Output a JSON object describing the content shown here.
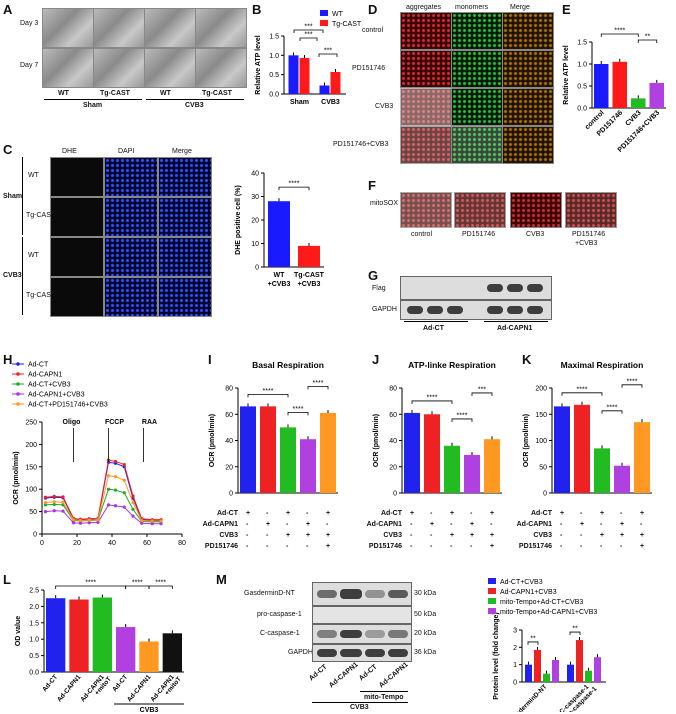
{
  "panels": {
    "A": {
      "letter": "A",
      "rows": [
        "Day 3",
        "Day 7"
      ],
      "cols": [
        "WT",
        "Tg-CAST",
        "WT",
        "Tg-CAST"
      ],
      "groups": [
        "Sham",
        "CVB3"
      ]
    },
    "C": {
      "letter": "C",
      "cols": [
        "DHE",
        "DAPI",
        "Merge"
      ],
      "rows": [
        "WT",
        "Tg-CAST",
        "WT",
        "Tg-CAST"
      ],
      "groups": [
        "Sham",
        "CVB3"
      ]
    },
    "D": {
      "letter": "D",
      "cols": [
        "aggregates",
        "monomers",
        "Merge"
      ],
      "rows": [
        "control",
        "PD151746",
        "CVB3",
        "PD151746+CVB3"
      ]
    },
    "F": {
      "letter": "F",
      "row": "mitoSOX",
      "cols": [
        "control",
        "PD151746",
        "CVB3",
        "PD151746",
        "+CVB3"
      ]
    },
    "G": {
      "letter": "G",
      "rows": [
        "Flag",
        "GAPDH"
      ],
      "groups": [
        "Ad-CT",
        "Ad-CAPN1"
      ]
    },
    "M": {
      "letter": "M",
      "rows": [
        "GasderminD-NT",
        "pro-caspase-1",
        "C-caspase-1",
        "GAPDH"
      ],
      "kda": [
        "30 kDa",
        "50 kDa",
        "20 kDa",
        "36 kDa"
      ],
      "lanes": [
        "Ad-CT",
        "Ad-CAPN1",
        "Ad-CT",
        "Ad-CAPN1"
      ],
      "sub": "mito-Tempo",
      "group": "CVB3"
    }
  },
  "tables": {
    "I": {
      "rows": [
        "Ad-CT",
        "Ad-CAPN1",
        "CVB3",
        "PD151746"
      ],
      "cells": [
        [
          "+",
          "-",
          "+",
          "-",
          "+"
        ],
        [
          "-",
          "+",
          "-",
          "+",
          "-"
        ],
        [
          "-",
          "-",
          "+",
          "+",
          "+"
        ],
        [
          "-",
          "-",
          "-",
          "-",
          "+"
        ]
      ]
    },
    "J": {
      "rows": [
        "Ad-CT",
        "Ad-CAPN1",
        "CVB3",
        "PD151746"
      ],
      "cells": [
        [
          "+",
          "-",
          "+",
          "-",
          "+"
        ],
        [
          "-",
          "+",
          "-",
          "+",
          "-"
        ],
        [
          "-",
          "-",
          "+",
          "+",
          "+"
        ],
        [
          "-",
          "-",
          "-",
          "-",
          "+"
        ]
      ]
    },
    "K": {
      "rows": [
        "Ad-CT",
        "Ad-CAPN1",
        "CVB3",
        "PD151746"
      ],
      "cells": [
        [
          "+",
          "-",
          "+",
          "-",
          "+"
        ],
        [
          "-",
          "+",
          "-",
          "+",
          "-"
        ],
        [
          "-",
          "-",
          "+",
          "+",
          "+"
        ],
        [
          "-",
          "-",
          "-",
          "-",
          "+"
        ]
      ]
    }
  },
  "chart_data": [
    {
      "id": "B",
      "letter": "B",
      "type": "bar",
      "categories": [
        "Sham",
        "CVB3"
      ],
      "series": [
        {
          "name": "WT",
          "values": [
            1.0,
            0.22
          ],
          "color": "#1a1aff"
        },
        {
          "name": "Tg-CAST",
          "values": [
            0.93,
            0.57
          ],
          "color": "#ff1a1a"
        }
      ],
      "ylabel": "Relative ATP level",
      "ylim": [
        0,
        1.5
      ],
      "yticks": [
        0,
        0.5,
        1.0,
        1.5
      ],
      "sig": [
        "***",
        "***",
        "***"
      ]
    },
    {
      "id": "C2",
      "type": "bar",
      "categories": [
        "WT +CVB3",
        "Tg-CAST +CVB3"
      ],
      "values": [
        28,
        9
      ],
      "colors": [
        "#1a1aff",
        "#ff1a1a"
      ],
      "ylabel": "DHE positive cell (%)",
      "ylim": [
        0,
        40
      ],
      "yticks": [
        0,
        10,
        20,
        30,
        40
      ],
      "sig": [
        "****"
      ]
    },
    {
      "id": "E",
      "letter": "E",
      "type": "bar",
      "categories": [
        "control",
        "PD151746",
        "CVB3",
        "PD151746+CVB3"
      ],
      "values": [
        1.0,
        1.05,
        0.22,
        0.57
      ],
      "colors": [
        "#1a1aff",
        "#ff1a1a",
        "#22bb22",
        "#b040e0"
      ],
      "ylabel": "Relative ATP level",
      "ylim": [
        0,
        1.5
      ],
      "yticks": [
        0,
        0.5,
        1.0,
        1.5
      ],
      "sig": [
        "****",
        "**"
      ]
    },
    {
      "id": "H",
      "letter": "H",
      "type": "line",
      "x": [
        2,
        7,
        12,
        18,
        22,
        27,
        32,
        38,
        42,
        47,
        52,
        57,
        63,
        68
      ],
      "series": [
        {
          "name": "Ad-CT",
          "color": "#2222ee",
          "values": [
            80,
            82,
            81,
            33,
            31,
            32,
            33,
            160,
            158,
            150,
            80,
            32,
            30,
            30
          ]
        },
        {
          "name": "Ad-CAPN1",
          "color": "#ee2222",
          "values": [
            82,
            84,
            83,
            35,
            33,
            34,
            35,
            165,
            162,
            155,
            85,
            34,
            32,
            32
          ]
        },
        {
          "name": "Ad-CT+CVB3",
          "color": "#22aa22",
          "values": [
            65,
            66,
            65,
            30,
            29,
            30,
            31,
            100,
            98,
            92,
            55,
            28,
            27,
            27
          ]
        },
        {
          "name": "Ad-CAPN1+CVB3",
          "color": "#aa33dd",
          "values": [
            50,
            52,
            51,
            25,
            24,
            25,
            26,
            65,
            63,
            60,
            40,
            24,
            23,
            23
          ]
        },
        {
          "name": "Ad-CT+PD151746+CVB3",
          "color": "#ff9922",
          "values": [
            70,
            72,
            71,
            32,
            30,
            31,
            32,
            130,
            128,
            120,
            70,
            30,
            29,
            29
          ]
        }
      ],
      "xlabel": "",
      "ylabel": "OCR (pmol/min)",
      "xlim": [
        0,
        80
      ],
      "ylim": [
        0,
        250
      ],
      "xticks": [
        0,
        20,
        40,
        60,
        80
      ],
      "yticks": [
        0,
        50,
        100,
        150,
        200,
        250
      ],
      "annotations": [
        "Oligo",
        "FCCP",
        "RAA"
      ]
    },
    {
      "id": "I",
      "letter": "I",
      "type": "bar",
      "title": "Basal Respiration",
      "values": [
        66,
        66,
        50,
        41,
        61
      ],
      "colors": [
        "#2222ee",
        "#ee2222",
        "#22bb22",
        "#b040e0",
        "#ff9922"
      ],
      "ylabel": "OCR (pmol/min)",
      "ylim": [
        0,
        80
      ],
      "yticks": [
        0,
        20,
        40,
        60,
        80
      ],
      "sig": [
        "****",
        "****",
        "****"
      ]
    },
    {
      "id": "J",
      "letter": "J",
      "type": "bar",
      "title": "ATP-linke Respiration",
      "values": [
        61,
        60,
        36,
        29,
        41
      ],
      "colors": [
        "#2222ee",
        "#ee2222",
        "#22bb22",
        "#b040e0",
        "#ff9922"
      ],
      "ylabel": "OCR (pmol/min)",
      "ylim": [
        0,
        80
      ],
      "yticks": [
        0,
        20,
        40,
        60,
        80
      ],
      "sig": [
        "****",
        "****",
        "***"
      ]
    },
    {
      "id": "K",
      "letter": "K",
      "type": "bar",
      "title": "Maximal Respiration",
      "values": [
        165,
        168,
        85,
        52,
        135
      ],
      "colors": [
        "#2222ee",
        "#ee2222",
        "#22bb22",
        "#b040e0",
        "#ff9922"
      ],
      "ylabel": "OCR (pmol/min)",
      "ylim": [
        0,
        200
      ],
      "yticks": [
        0,
        50,
        100,
        150,
        200
      ],
      "sig": [
        "****",
        "****",
        "****"
      ]
    },
    {
      "id": "L",
      "letter": "L",
      "type": "bar",
      "categories": [
        "Ad-CT",
        "Ad-CAPN1",
        "Ad-CAPN1 +mitoT",
        "Ad-CT",
        "Ad-CAPN1",
        "Ad-CAPN1 +mitoT"
      ],
      "values": [
        2.25,
        2.21,
        2.27,
        1.37,
        0.93,
        1.18
      ],
      "colors": [
        "#2222ee",
        "#ee2222",
        "#22bb22",
        "#b040e0",
        "#ff9922",
        "#111111"
      ],
      "ylabel": "OD value",
      "ylim": [
        0,
        2.5
      ],
      "yticks": [
        0.0,
        0.5,
        1.0,
        1.5,
        2.0,
        2.5
      ],
      "group": "CVB3",
      "sig": [
        "****",
        "****",
        "****"
      ]
    },
    {
      "id": "M2",
      "type": "bar",
      "categories": [
        "GasderminD-NT",
        "C-caspase-1 /pro-caspase-1"
      ],
      "series": [
        {
          "name": "Ad-CT+CVB3",
          "color": "#2222ee",
          "values": [
            1.0,
            1.0
          ]
        },
        {
          "name": "Ad-CAPN1+CVB3",
          "color": "#ee2222",
          "values": [
            1.85,
            2.42
          ]
        },
        {
          "name": "mito-Tempo+Ad-CT+CVB3",
          "color": "#22bb22",
          "values": [
            0.48,
            0.65
          ]
        },
        {
          "name": "mito-Tempo+Ad-CAPN1+CVB3",
          "color": "#b040e0",
          "values": [
            1.27,
            1.43
          ]
        }
      ],
      "ylabel": "Protein level (fold change)",
      "ylim": [
        0,
        3
      ],
      "yticks": [
        0,
        1,
        2,
        3
      ],
      "sig": [
        "**",
        "*",
        "*"
      ]
    }
  ]
}
